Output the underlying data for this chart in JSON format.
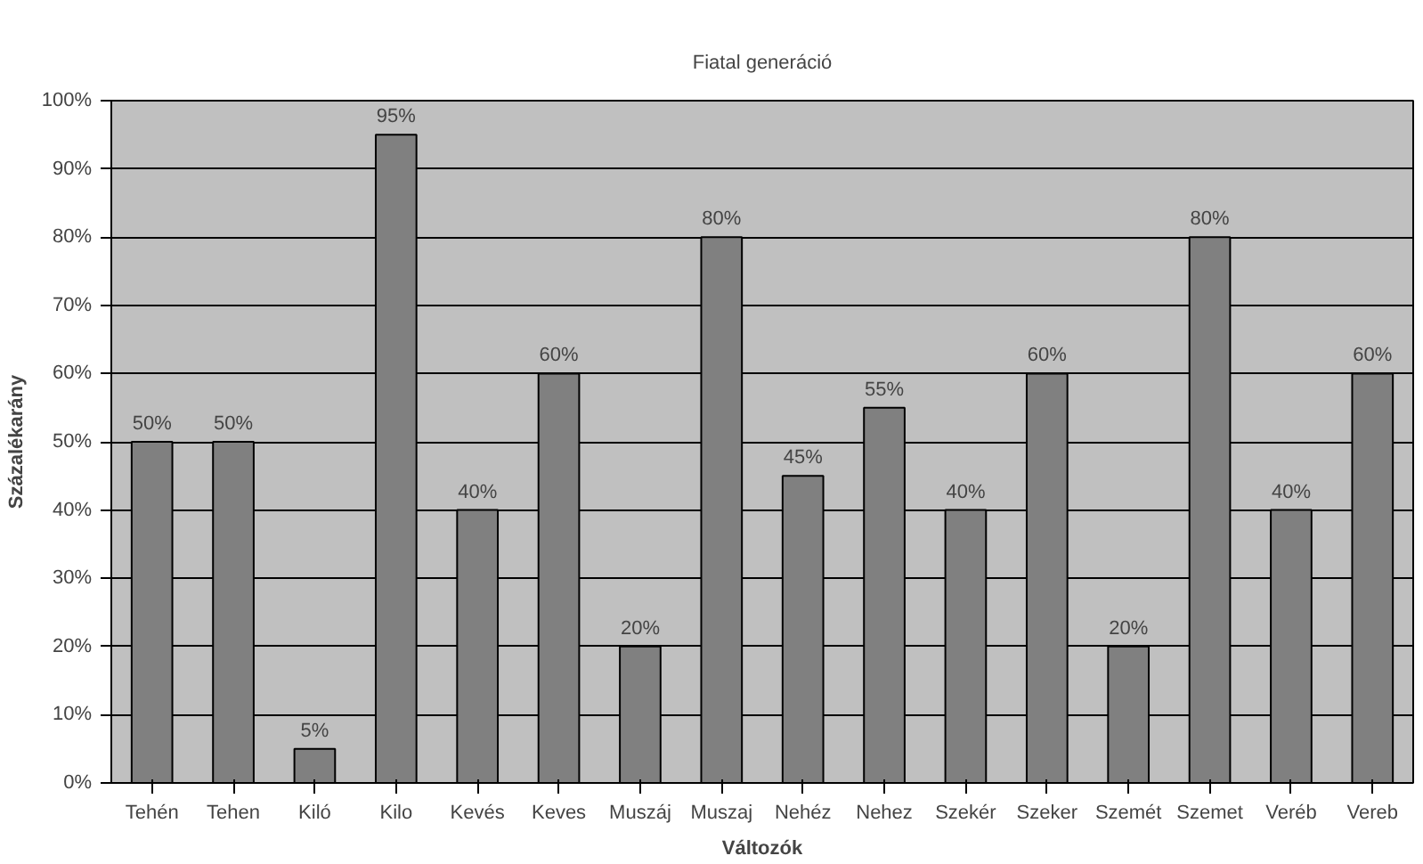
{
  "chart_data": {
    "type": "bar",
    "title": "Fiatal generáció",
    "xlabel": "Változók",
    "ylabel": "Százalékarány",
    "categories": [
      "Tehén",
      "Tehen",
      "Kiló",
      "Kilo",
      "Kevés",
      "Keves",
      "Muszáj",
      "Muszaj",
      "Nehéz",
      "Nehez",
      "Szekér",
      "Szeker",
      "Szemét",
      "Szemet",
      "Veréb",
      "Vereb"
    ],
    "values": [
      50,
      50,
      5,
      95,
      40,
      60,
      20,
      80,
      45,
      55,
      40,
      60,
      20,
      80,
      40,
      60
    ],
    "value_labels": [
      "50%",
      "50%",
      "5%",
      "95%",
      "40%",
      "60%",
      "20%",
      "80%",
      "45%",
      "55%",
      "40%",
      "60%",
      "20%",
      "80%",
      "40%",
      "60%"
    ],
    "color": "#808080",
    "ylim": [
      0,
      100
    ],
    "yticks": [
      {
        "value": 0,
        "label": "0%"
      },
      {
        "value": 10,
        "label": "10%"
      },
      {
        "value": 20,
        "label": "20%"
      },
      {
        "value": 30,
        "label": "30%"
      },
      {
        "value": 40,
        "label": "40%"
      },
      {
        "value": 50,
        "label": "50%"
      },
      {
        "value": 60,
        "label": "60%"
      },
      {
        "value": 70,
        "label": "70%"
      },
      {
        "value": 80,
        "label": "80%"
      },
      {
        "value": 90,
        "label": "90%"
      },
      {
        "value": 100,
        "label": "100%"
      }
    ],
    "grid": "y"
  }
}
